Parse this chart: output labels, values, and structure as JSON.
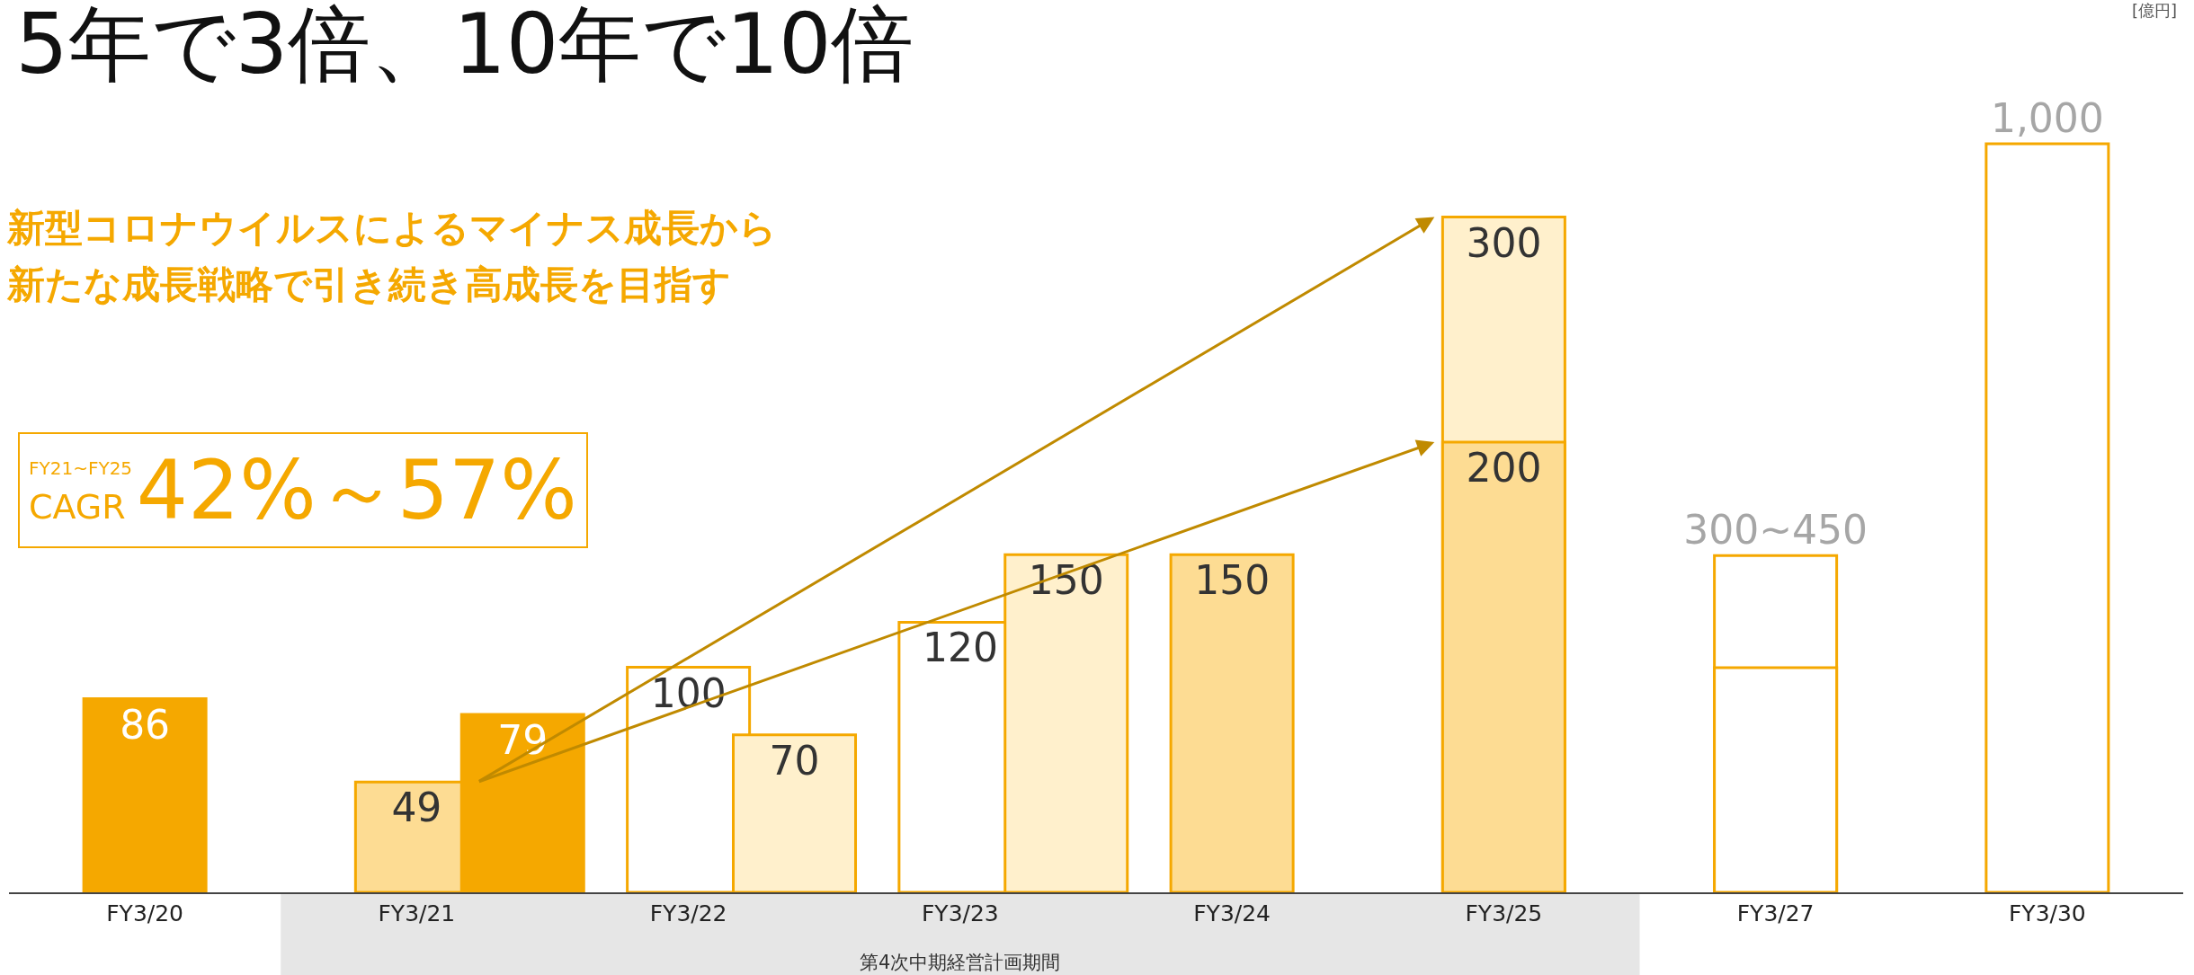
{
  "chart_data": {
    "type": "bar",
    "title": "5年で3倍、10年で10倍",
    "subtitle": "新型コロナウイルスによるマイナス成長から新たな成長戦略で引き続き高成長を目指す",
    "categories": [
      "FY3/20",
      "FY3/21",
      "FY3/22",
      "FY3/23",
      "FY3/24",
      "FY3/25",
      "FY3/27",
      "FY3/30"
    ],
    "series": [
      {
        "color": "#f5a800",
        "colors": [
          null,
          null,
          null,
          null,
          null,
          "#fff0cc",
          null,
          null
        ],
        "values": [
          null,
          null,
          null,
          null,
          null,
          300,
          null,
          null
        ],
        "value_labels": [
          null,
          null,
          null,
          null,
          null,
          "300",
          null,
          null
        ]
      },
      {
        "color": "#f5a800",
        "colors": [
          "#f5a800",
          null,
          null,
          null,
          "#fddc93",
          "#fddc93",
          null,
          null
        ],
        "values": [
          86,
          null,
          null,
          null,
          150,
          200,
          null,
          null
        ],
        "value_labels": [
          "86",
          null,
          null,
          null,
          "150",
          "200",
          null,
          null
        ]
      },
      {
        "color": "#f5a800",
        "colors": [
          null,
          "#fddc93",
          "#ffffff",
          "#ffffff",
          null,
          null,
          null,
          null
        ],
        "values": [
          null,
          49,
          100,
          120,
          null,
          null,
          null,
          null
        ],
        "value_labels": [
          null,
          "49",
          "100",
          "120",
          null,
          null,
          null,
          null
        ]
      },
      {
        "color": "#f5a800",
        "colors": [
          null,
          "#f5a800",
          "#fff0cc",
          "#fff0cc",
          null,
          null,
          null,
          null
        ],
        "values": [
          null,
          79,
          70,
          150,
          null,
          null,
          null,
          null
        ],
        "value_labels": [
          null,
          "79",
          "70",
          "150",
          null,
          null,
          null,
          null
        ]
      },
      {
        "color": "#f5a800",
        "axis": "y2",
        "colors": [
          null,
          null,
          null,
          null,
          null,
          null,
          "#ffffff",
          null
        ],
        "values": [
          null,
          null,
          null,
          null,
          null,
          null,
          450,
          null
        ],
        "value_labels": [
          null,
          null,
          null,
          null,
          null,
          null,
          "300~450",
          null
        ]
      },
      {
        "color": "#f5a800",
        "axis": "y2",
        "colors": [
          null,
          null,
          null,
          null,
          null,
          null,
          "#ffffff",
          "#ffffff"
        ],
        "values": [
          null,
          null,
          null,
          null,
          null,
          null,
          300,
          1000
        ],
        "value_labels": [
          null,
          null,
          null,
          null,
          null,
          null,
          null,
          "1,000"
        ]
      }
    ],
    "tick_labels": "x",
    "grid": false,
    "annotations": [
      "[億円]",
      "FY21~FY25",
      "CAGR",
      "42%～57%",
      "第4次中期経営計画期間"
    ]
  }
}
